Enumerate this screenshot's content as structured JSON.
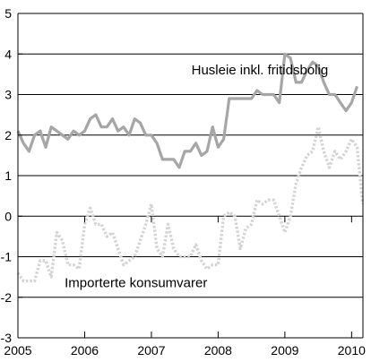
{
  "chart_data": {
    "type": "line",
    "title": "",
    "xlabel": "",
    "ylabel": "",
    "xlim": [
      2005,
      2010.17
    ],
    "ylim": [
      -3,
      5
    ],
    "yticks": [
      -3,
      -2,
      -1,
      0,
      1,
      2,
      3,
      4,
      5
    ],
    "ytick_labels": [
      "-3",
      "-2",
      "-1",
      "0",
      "1",
      "2",
      "3",
      "4",
      "5"
    ],
    "xticks": [
      2005,
      2006,
      2007,
      2008,
      2009,
      2010
    ],
    "xtick_labels": [
      "2005",
      "2006",
      "2007",
      "2008",
      "2009",
      "2010"
    ],
    "grid": "horizontal",
    "legend": "none",
    "colors": {
      "rent": "#a6a6a6",
      "imported": "#d4d4d4",
      "grid": "#000000",
      "axis": "#000000"
    },
    "series": [
      {
        "key": "rent",
        "style": "solid",
        "x_start": 2005.0,
        "x_step": 0.08333,
        "values": [
          2.1,
          1.8,
          1.6,
          2.0,
          2.1,
          1.7,
          2.2,
          2.1,
          2.0,
          1.9,
          2.1,
          2.0,
          2.1,
          2.4,
          2.5,
          2.2,
          2.2,
          2.4,
          2.1,
          2.2,
          2.0,
          2.4,
          2.3,
          2.0,
          2.0,
          1.8,
          1.4,
          1.4,
          1.4,
          1.2,
          1.6,
          1.6,
          1.8,
          1.5,
          1.6,
          2.2,
          1.7,
          1.9,
          2.9,
          2.9,
          2.9,
          2.9,
          2.9,
          3.1,
          3.0,
          3.0,
          3.0,
          2.8,
          4.0,
          3.9,
          3.3,
          3.3,
          3.6,
          3.8,
          3.7,
          3.3,
          3.0,
          3.0,
          2.8,
          2.6,
          2.8,
          3.2
        ]
      },
      {
        "key": "imported",
        "style": "dotted",
        "x_start": 2005.0,
        "x_step": 0.08333,
        "values": [
          -1.4,
          -1.6,
          -1.6,
          -1.6,
          -1.1,
          -1.1,
          -1.5,
          -0.4,
          -0.6,
          -1.2,
          -1.2,
          -1.3,
          -0.2,
          0.2,
          -0.2,
          -0.2,
          -0.5,
          -0.4,
          -0.8,
          -1.2,
          -1.1,
          -1.0,
          -0.6,
          -0.2,
          0.3,
          -0.8,
          -1.0,
          -0.2,
          -0.8,
          -1.0,
          -1.0,
          -1.0,
          -0.7,
          -1.1,
          -1.3,
          -1.2,
          -1.2,
          0.0,
          0.1,
          0.0,
          -0.8,
          -0.3,
          -0.2,
          0.4,
          0.3,
          0.4,
          0.4,
          0.0,
          -0.4,
          0.0,
          0.8,
          1.2,
          1.5,
          1.6,
          2.2,
          1.6,
          1.2,
          1.6,
          1.4,
          1.6,
          1.9,
          1.7,
          0.3
        ]
      }
    ],
    "annotations": [
      {
        "key": "rent",
        "text": "Husleie inkl. fritidsbolig",
        "x": 2007.6,
        "y": 3.5
      },
      {
        "key": "imported",
        "text": "Importerte konsumvarer",
        "x": 2005.7,
        "y": -1.75
      }
    ]
  }
}
